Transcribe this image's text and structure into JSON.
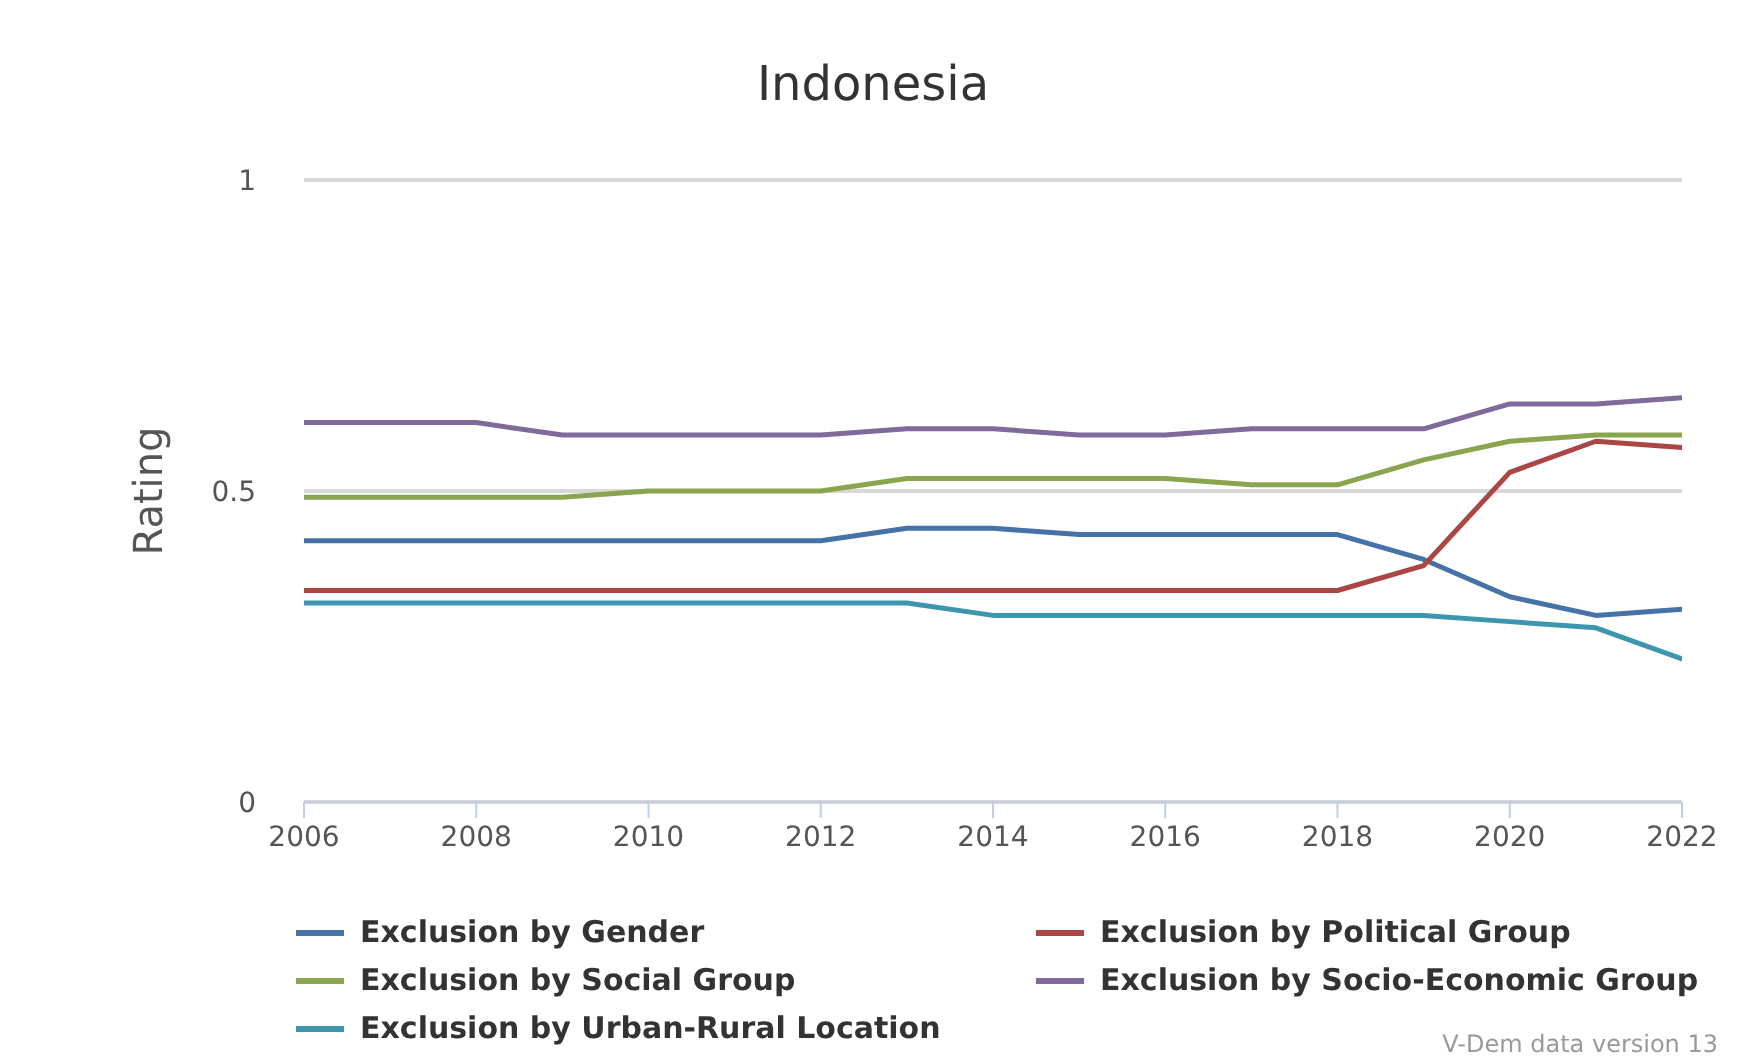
{
  "chart_data": {
    "type": "line",
    "title": "Indonesia",
    "ylabel": "Rating",
    "x": [
      2006,
      2007,
      2008,
      2009,
      2010,
      2011,
      2012,
      2013,
      2014,
      2015,
      2016,
      2017,
      2018,
      2019,
      2020,
      2021,
      2022
    ],
    "series": [
      {
        "name": "Exclusion by Gender",
        "color": "#4572a7",
        "values": [
          0.42,
          0.42,
          0.42,
          0.42,
          0.42,
          0.42,
          0.42,
          0.44,
          0.44,
          0.43,
          0.43,
          0.43,
          0.43,
          0.39,
          0.33,
          0.3,
          0.31
        ]
      },
      {
        "name": "Exclusion by Political Group",
        "color": "#aa4643",
        "values": [
          0.34,
          0.34,
          0.34,
          0.34,
          0.34,
          0.34,
          0.34,
          0.34,
          0.34,
          0.34,
          0.34,
          0.34,
          0.34,
          0.38,
          0.53,
          0.58,
          0.57
        ]
      },
      {
        "name": "Exclusion by Social Group",
        "color": "#89a54e",
        "values": [
          0.49,
          0.49,
          0.49,
          0.49,
          0.5,
          0.5,
          0.5,
          0.52,
          0.52,
          0.52,
          0.52,
          0.51,
          0.51,
          0.55,
          0.58,
          0.59,
          0.59
        ]
      },
      {
        "name": "Exclusion by Socio-Economic Group",
        "color": "#80699b",
        "values": [
          0.61,
          0.61,
          0.61,
          0.59,
          0.59,
          0.59,
          0.59,
          0.6,
          0.6,
          0.59,
          0.59,
          0.6,
          0.6,
          0.6,
          0.64,
          0.64,
          0.65
        ]
      },
      {
        "name": "Exclusion by Urban-Rural Location",
        "color": "#3d96ae",
        "values": [
          0.32,
          0.32,
          0.32,
          0.32,
          0.32,
          0.32,
          0.32,
          0.32,
          0.3,
          0.3,
          0.3,
          0.3,
          0.3,
          0.3,
          0.29,
          0.28,
          0.23
        ]
      }
    ],
    "xlim": [
      2006,
      2022
    ],
    "xticks": [
      2006,
      2008,
      2010,
      2012,
      2014,
      2016,
      2018,
      2020,
      2022
    ],
    "ylim": [
      0,
      1
    ],
    "yticks": [
      0,
      0.5,
      1
    ],
    "grid": "y",
    "legend": "bottom",
    "marker": "none",
    "line_style": "solid",
    "annotations": [
      "V-Dem data version 13"
    ]
  }
}
